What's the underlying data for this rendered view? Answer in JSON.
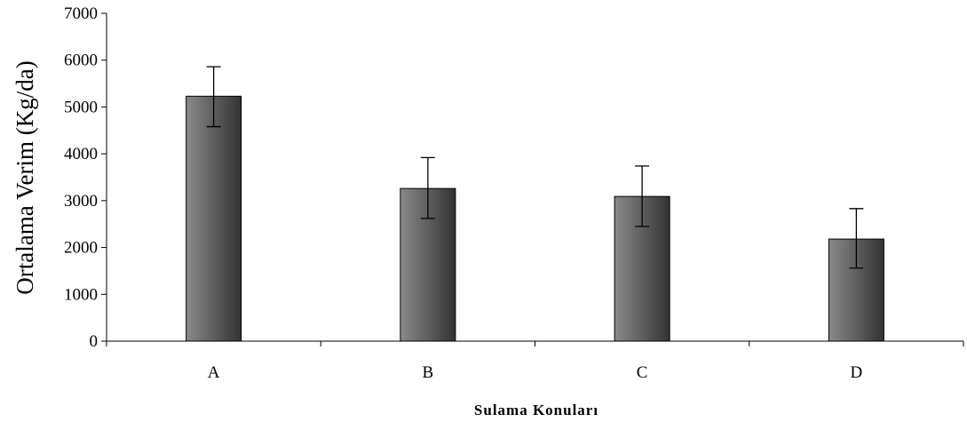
{
  "chart_data": {
    "type": "bar",
    "categories": [
      "A",
      "B",
      "C",
      "D"
    ],
    "values": [
      5230,
      3260,
      3090,
      2180
    ],
    "error_bars": [
      {
        "low": 4580,
        "high": 5860
      },
      {
        "low": 2620,
        "high": 3920
      },
      {
        "low": 2450,
        "high": 3740
      },
      {
        "low": 1560,
        "high": 2830
      }
    ],
    "xlabel": "Sulama Konuları",
    "ylabel": "Ortalama Verim (Kg/da)",
    "ylim": [
      0,
      7000
    ],
    "yticks": [
      0,
      1000,
      2000,
      3000,
      4000,
      5000,
      6000,
      7000
    ],
    "grid": false,
    "legend": "none",
    "bar_color_dark": "#333333",
    "bar_color_light": "#8a8a8a"
  }
}
